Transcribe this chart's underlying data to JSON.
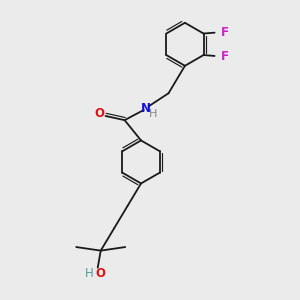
{
  "background_color": "#ebebeb",
  "bond_color": "#1a1a1a",
  "figsize": [
    3.0,
    3.0
  ],
  "dpi": 100,
  "atoms": {
    "O_carbonyl": {
      "label": "O",
      "color": "#dd1111",
      "fontsize": 8.5
    },
    "N": {
      "label": "N",
      "color": "#1111dd",
      "fontsize": 8.5
    },
    "H_N": {
      "label": "H",
      "color": "#888888",
      "fontsize": 8
    },
    "F1": {
      "label": "F",
      "color": "#cc22cc",
      "fontsize": 8.5
    },
    "F2": {
      "label": "F",
      "color": "#cc22cc",
      "fontsize": 8.5
    },
    "O_hydroxy": {
      "label": "O",
      "color": "#dd1111",
      "fontsize": 8.5
    },
    "H_O": {
      "label": "H",
      "color": "#559999",
      "fontsize": 8.5
    }
  },
  "ring_r": 0.72,
  "lw": 1.3,
  "lw2": 0.85
}
